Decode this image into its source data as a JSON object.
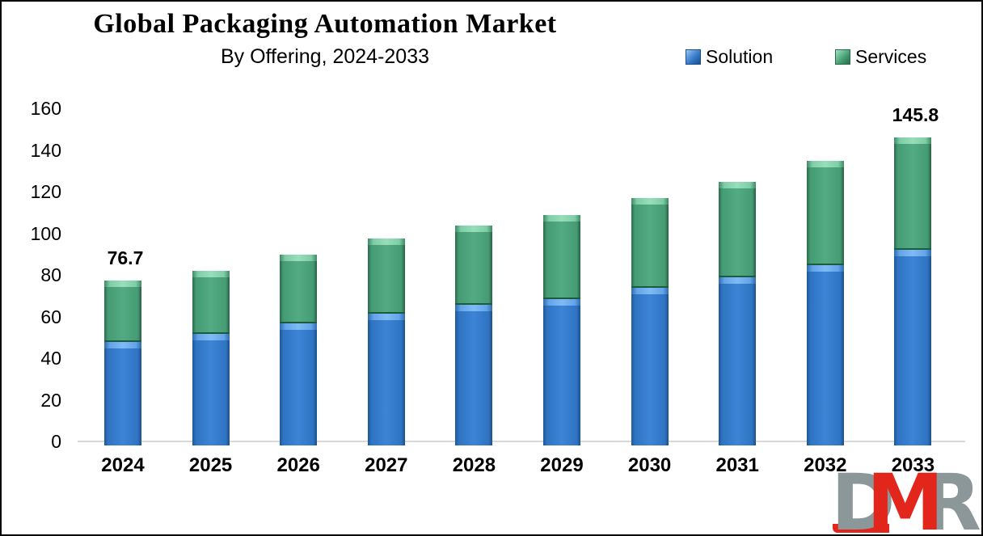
{
  "title": "Global Packaging Automation Market",
  "subtitle": "By Offering, 2024-2033",
  "legend": {
    "items": [
      {
        "label": "Solution",
        "color": "#2E74C2"
      },
      {
        "label": "Services",
        "color": "#459C74"
      }
    ]
  },
  "logo": {
    "letter_d": "D",
    "letter_m": "M",
    "letter_r": "R",
    "gray": "#8B9798",
    "red": "#E2261C"
  },
  "chart_data": {
    "type": "bar",
    "stacked": true,
    "title": "Global Packaging Automation Market",
    "subtitle": "By Offering, 2024-2033",
    "categories": [
      "2024",
      "2025",
      "2026",
      "2027",
      "2028",
      "2029",
      "2030",
      "2031",
      "2032",
      "2033"
    ],
    "series": [
      {
        "name": "Solution",
        "color": "#2E74C2",
        "values": [
          47.3,
          51.3,
          56.2,
          61.0,
          65.3,
          68.0,
          73.4,
          78.5,
          84.3,
          91.5
        ]
      },
      {
        "name": "Services",
        "color": "#459C74",
        "values": [
          29.4,
          30.3,
          33.1,
          35.9,
          37.9,
          40.4,
          43.2,
          45.9,
          49.9,
          54.3
        ]
      }
    ],
    "totals": [
      76.7,
      81.6,
      89.3,
      96.9,
      103.2,
      108.4,
      116.6,
      124.4,
      134.2,
      145.8
    ],
    "total_labels": [
      {
        "category": "2024",
        "text": "76.7"
      },
      {
        "category": "2033",
        "text": "145.8"
      }
    ],
    "xlabel": "",
    "ylabel": "",
    "ylim": [
      0,
      160
    ],
    "yticks": [
      0,
      20,
      40,
      60,
      80,
      100,
      120,
      140,
      160
    ],
    "grid": false,
    "legend_position": "top-right",
    "baseline_color": "#D9D9D9"
  }
}
